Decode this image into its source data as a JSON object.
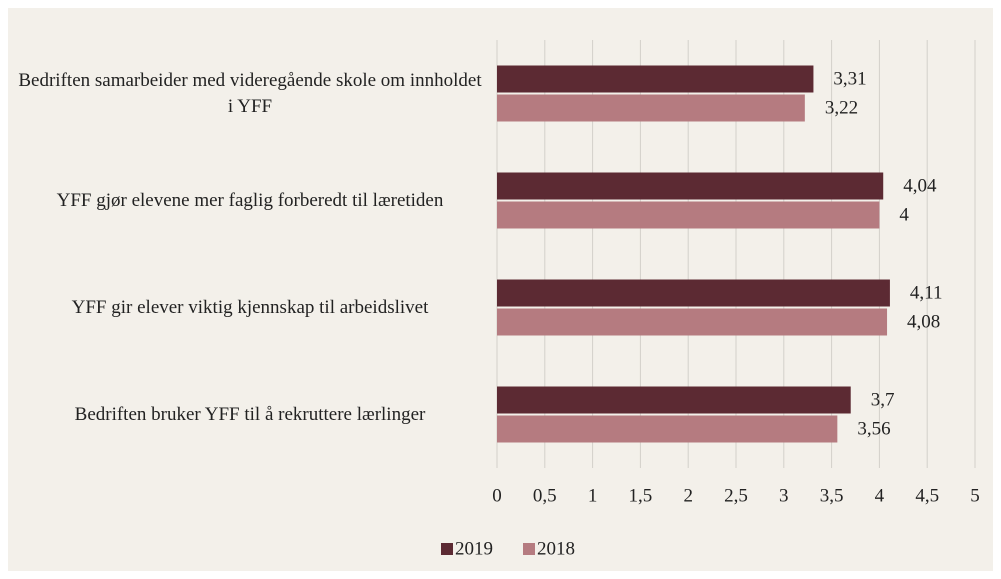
{
  "chart_data": {
    "type": "hbar",
    "categories": [
      "Bedriften samarbeider med videregående skole om innholdet i YFF",
      "YFF gjør elevene mer faglig forberedt til læretiden",
      "YFF gir elever viktig kjennskap til arbeidslivet",
      "Bedriften bruker YFF til å rekruttere lærlinger"
    ],
    "series": [
      {
        "name": "2019",
        "color": "#5c2a33",
        "values": [
          3.31,
          4.04,
          4.11,
          3.7
        ],
        "value_labels": [
          "3,31",
          "4,04",
          "4,11",
          "3,7"
        ]
      },
      {
        "name": "2018",
        "color": "#b57b80",
        "values": [
          3.22,
          4,
          4.08,
          3.56
        ],
        "value_labels": [
          "3,22",
          "4",
          "4,08",
          "3,56"
        ]
      }
    ],
    "xlim": [
      0,
      5
    ],
    "xticks": [
      0,
      {
        "value": 0.5,
        "label": "0,5"
      },
      1,
      {
        "value": 1.5,
        "label": "1,5"
      },
      2,
      {
        "value": 2.5,
        "label": "2,5"
      },
      3,
      {
        "value": 3.5,
        "label": "3,5"
      },
      4,
      {
        "value": 4.5,
        "label": "4,5"
      },
      5
    ],
    "grid": true,
    "legend": "bottom"
  }
}
